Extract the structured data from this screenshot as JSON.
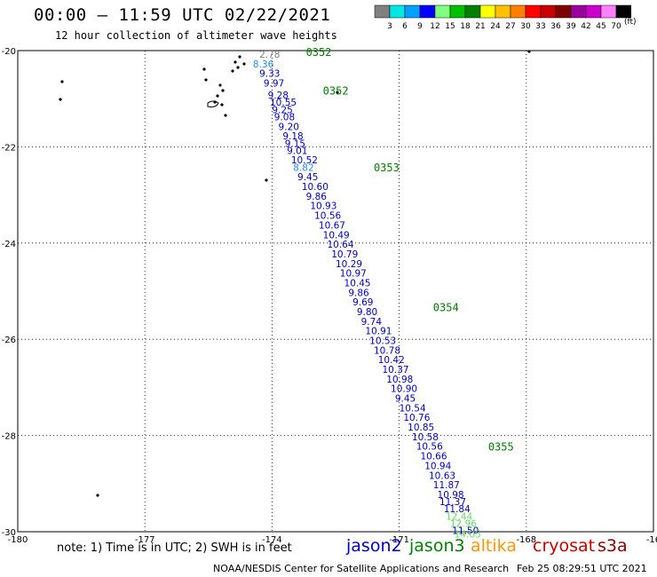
{
  "header": {
    "title": "00:00 — 11:59 UTC 02/22/2021",
    "subtitle": "12 hour collection of altimeter wave heights"
  },
  "colorbar": {
    "colors": [
      "#808080",
      "#00e5e5",
      "#00a0ff",
      "#0000ff",
      "#80ff80",
      "#00c000",
      "#008000",
      "#ffff00",
      "#ffc000",
      "#ff8000",
      "#ff0000",
      "#c80000",
      "#800000",
      "#9c009c",
      "#cc00cc",
      "#ff80ff",
      "#000000"
    ],
    "labels": [
      "3",
      "6",
      "9",
      "12",
      "15",
      "18",
      "21",
      "24",
      "27",
      "30",
      "33",
      "36",
      "39",
      "42",
      "45",
      "70"
    ],
    "unit": "(ft)"
  },
  "axes": {
    "x_ticks": [
      "-180",
      "-177",
      "-174",
      "-171",
      "-168",
      "-16"
    ],
    "y_ticks": [
      "-20",
      "-22",
      "-24",
      "-26",
      "-28",
      "-30"
    ]
  },
  "track": {
    "times": [
      {
        "text": "0352",
        "lat": -20.0,
        "lon": -173.2
      },
      {
        "text": "0352",
        "lat": -20.8,
        "lon": -172.8
      },
      {
        "text": "0353",
        "lat": -22.4,
        "lon": -171.6
      },
      {
        "text": "0354",
        "lat": -25.3,
        "lon": -170.2
      },
      {
        "text": "0355",
        "lat": -28.2,
        "lon": -168.9
      }
    ],
    "points": [
      {
        "v": "2.78",
        "lat": -20.0,
        "lon": -174.3
      },
      {
        "v": "8.36",
        "lat": -20.2,
        "lon": -174.45
      },
      {
        "v": "9.33",
        "lat": -20.4,
        "lon": -174.3
      },
      {
        "v": "9.97",
        "lat": -20.6,
        "lon": -174.2
      },
      {
        "v": "9.28",
        "lat": -20.85,
        "lon": -174.1
      },
      {
        "v": "10.55",
        "lat": -21.0,
        "lon": -174.05
      },
      {
        "v": "9.25",
        "lat": -21.15,
        "lon": -174.0
      },
      {
        "v": "9.08",
        "lat": -21.3,
        "lon": -173.95
      },
      {
        "v": "9.20",
        "lat": -21.5,
        "lon": -173.85
      },
      {
        "v": "9.18",
        "lat": -21.7,
        "lon": -173.75
      },
      {
        "v": "9.15",
        "lat": -21.85,
        "lon": -173.7
      },
      {
        "v": "9.01",
        "lat": -22.0,
        "lon": -173.65
      },
      {
        "v": "10.52",
        "lat": -22.2,
        "lon": -173.55
      },
      {
        "v": "8.82",
        "lat": -22.35,
        "lon": -173.5
      },
      {
        "v": "9.45",
        "lat": -22.55,
        "lon": -173.4
      },
      {
        "v": "10.60",
        "lat": -22.75,
        "lon": -173.3
      },
      {
        "v": "9.86",
        "lat": -22.95,
        "lon": -173.2
      },
      {
        "v": "10.93",
        "lat": -23.15,
        "lon": -173.1
      },
      {
        "v": "10.56",
        "lat": -23.35,
        "lon": -173.0
      },
      {
        "v": "10.67",
        "lat": -23.55,
        "lon": -172.9
      },
      {
        "v": "10.49",
        "lat": -23.75,
        "lon": -172.8
      },
      {
        "v": "10.64",
        "lat": -23.95,
        "lon": -172.7
      },
      {
        "v": "10.79",
        "lat": -24.15,
        "lon": -172.6
      },
      {
        "v": "10.29",
        "lat": -24.35,
        "lon": -172.5
      },
      {
        "v": "10.97",
        "lat": -24.55,
        "lon": -172.4
      },
      {
        "v": "10.45",
        "lat": -24.75,
        "lon": -172.3
      },
      {
        "v": "9.86",
        "lat": -24.95,
        "lon": -172.2
      },
      {
        "v": "9.69",
        "lat": -25.15,
        "lon": -172.1
      },
      {
        "v": "9.80",
        "lat": -25.35,
        "lon": -172.0
      },
      {
        "v": "9.74",
        "lat": -25.55,
        "lon": -171.9
      },
      {
        "v": "10.91",
        "lat": -25.75,
        "lon": -171.8
      },
      {
        "v": "10.53",
        "lat": -25.95,
        "lon": -171.7
      },
      {
        "v": "10.78",
        "lat": -26.15,
        "lon": -171.6
      },
      {
        "v": "10.42",
        "lat": -26.35,
        "lon": -171.5
      },
      {
        "v": "10.37",
        "lat": -26.55,
        "lon": -171.4
      },
      {
        "v": "10.98",
        "lat": -26.75,
        "lon": -171.3
      },
      {
        "v": "10.90",
        "lat": -26.95,
        "lon": -171.2
      },
      {
        "v": "9.45",
        "lat": -27.15,
        "lon": -171.1
      },
      {
        "v": "10.54",
        "lat": -27.35,
        "lon": -171.0
      },
      {
        "v": "10.76",
        "lat": -27.55,
        "lon": -170.9
      },
      {
        "v": "10.85",
        "lat": -27.75,
        "lon": -170.8
      },
      {
        "v": "10.58",
        "lat": -27.95,
        "lon": -170.7
      },
      {
        "v": "10.56",
        "lat": -28.15,
        "lon": -170.6
      },
      {
        "v": "10.66",
        "lat": -28.35,
        "lon": -170.5
      },
      {
        "v": "10.94",
        "lat": -28.55,
        "lon": -170.4
      },
      {
        "v": "10.63",
        "lat": -28.75,
        "lon": -170.3
      },
      {
        "v": "11.87",
        "lat": -28.95,
        "lon": -170.2
      },
      {
        "v": "10.98",
        "lat": -29.15,
        "lon": -170.1
      },
      {
        "v": "11.37",
        "lat": -29.3,
        "lon": -170.05
      },
      {
        "v": "11.84",
        "lat": -29.45,
        "lon": -169.95
      },
      {
        "v": "12.44",
        "lat": -29.6,
        "lon": -169.9
      },
      {
        "v": "12.96",
        "lat": -29.75,
        "lon": -169.8
      },
      {
        "v": "11.50",
        "lat": -29.9,
        "lon": -169.75
      },
      {
        "v": "14.05",
        "lat": -29.97,
        "lon": -169.7
      }
    ]
  },
  "footer": {
    "note": "note: 1) Time is in UTC; 2) SWH is in feet",
    "satellites": [
      {
        "name": "jason2",
        "color": "#0000c8"
      },
      {
        "name": "jason3",
        "color": "#008000"
      },
      {
        "name": "altika",
        "color": "#ff9900"
      },
      {
        "name": "cryosat",
        "color": "#c80000"
      },
      {
        "name": "s3a",
        "color": "#8b0000"
      }
    ],
    "credit": "NOAA/NESDIS Center for Satellite Applications and Research",
    "timestamp": "Feb 25 08:29:51 UTC 2021"
  }
}
